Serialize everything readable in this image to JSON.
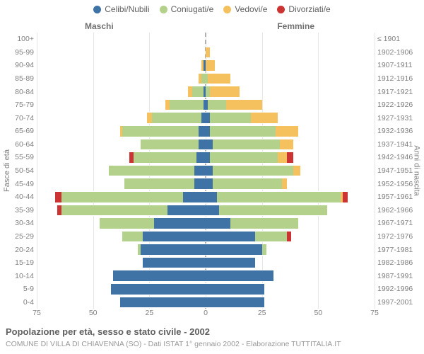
{
  "legend": [
    {
      "label": "Celibi/Nubili",
      "color": "#3f73a6"
    },
    {
      "label": "Coniugati/e",
      "color": "#b3d18b"
    },
    {
      "label": "Vedovi/e",
      "color": "#f4c15e"
    },
    {
      "label": "Divorziati/e",
      "color": "#cc3333"
    }
  ],
  "gender": {
    "male": "Maschi",
    "female": "Femmine"
  },
  "axis": {
    "left_title": "Fasce di età",
    "right_title": "Anni di nascita",
    "xmax": 75,
    "xticks": [
      75,
      50,
      25,
      0,
      25,
      50,
      75
    ]
  },
  "colors": {
    "grid": "#e6e6e6",
    "center": "#b0b0b0",
    "text": "#808080",
    "bg": "#ffffff"
  },
  "rows": [
    {
      "age": "100+",
      "birth": "≤ 1901",
      "m": [
        0,
        0,
        0,
        0
      ],
      "f": [
        0,
        0,
        0,
        0
      ]
    },
    {
      "age": "95-99",
      "birth": "1902-1906",
      "m": [
        0,
        0,
        0,
        0
      ],
      "f": [
        0,
        0,
        2,
        0
      ]
    },
    {
      "age": "90-94",
      "birth": "1907-1911",
      "m": [
        1,
        0,
        1,
        0
      ],
      "f": [
        0,
        0,
        4,
        0
      ]
    },
    {
      "age": "85-89",
      "birth": "1912-1916",
      "m": [
        0,
        2,
        1,
        0
      ],
      "f": [
        0,
        1,
        10,
        0
      ]
    },
    {
      "age": "80-84",
      "birth": "1917-1921",
      "m": [
        1,
        5,
        2,
        0
      ],
      "f": [
        0,
        2,
        13,
        0
      ]
    },
    {
      "age": "75-79",
      "birth": "1922-1926",
      "m": [
        1,
        15,
        2,
        0
      ],
      "f": [
        1,
        8,
        16,
        0
      ]
    },
    {
      "age": "70-74",
      "birth": "1927-1931",
      "m": [
        2,
        22,
        2,
        0
      ],
      "f": [
        2,
        18,
        12,
        0
      ]
    },
    {
      "age": "65-69",
      "birth": "1932-1936",
      "m": [
        3,
        34,
        1,
        0
      ],
      "f": [
        2,
        29,
        10,
        0
      ]
    },
    {
      "age": "60-64",
      "birth": "1937-1941",
      "m": [
        3,
        26,
        0,
        0
      ],
      "f": [
        3,
        30,
        6,
        0
      ]
    },
    {
      "age": "55-59",
      "birth": "1942-1946",
      "m": [
        4,
        28,
        0,
        2
      ],
      "f": [
        2,
        30,
        4,
        3
      ]
    },
    {
      "age": "50-54",
      "birth": "1947-1951",
      "m": [
        5,
        38,
        0,
        0
      ],
      "f": [
        3,
        36,
        3,
        0
      ]
    },
    {
      "age": "45-49",
      "birth": "1952-1956",
      "m": [
        5,
        31,
        0,
        0
      ],
      "f": [
        3,
        31,
        2,
        0
      ]
    },
    {
      "age": "40-44",
      "birth": "1957-1961",
      "m": [
        10,
        54,
        0,
        3
      ],
      "f": [
        5,
        55,
        1,
        2
      ]
    },
    {
      "age": "35-39",
      "birth": "1962-1966",
      "m": [
        17,
        47,
        0,
        2
      ],
      "f": [
        6,
        48,
        0,
        0
      ]
    },
    {
      "age": "30-34",
      "birth": "1967-1971",
      "m": [
        23,
        24,
        0,
        0
      ],
      "f": [
        11,
        30,
        0,
        0
      ]
    },
    {
      "age": "25-29",
      "birth": "1972-1976",
      "m": [
        28,
        9,
        0,
        0
      ],
      "f": [
        22,
        14,
        0,
        2
      ]
    },
    {
      "age": "20-24",
      "birth": "1977-1981",
      "m": [
        29,
        1,
        0,
        0
      ],
      "f": [
        25,
        2,
        0,
        0
      ]
    },
    {
      "age": "15-19",
      "birth": "1982-1986",
      "m": [
        28,
        0,
        0,
        0
      ],
      "f": [
        22,
        0,
        0,
        0
      ]
    },
    {
      "age": "10-14",
      "birth": "1987-1991",
      "m": [
        41,
        0,
        0,
        0
      ],
      "f": [
        30,
        0,
        0,
        0
      ]
    },
    {
      "age": "5-9",
      "birth": "1992-1996",
      "m": [
        42,
        0,
        0,
        0
      ],
      "f": [
        26,
        0,
        0,
        0
      ]
    },
    {
      "age": "0-4",
      "birth": "1997-2001",
      "m": [
        38,
        0,
        0,
        0
      ],
      "f": [
        26,
        0,
        0,
        0
      ]
    }
  ],
  "title": "Popolazione per età, sesso e stato civile - 2002",
  "subtitle": "COMUNE DI VILLA DI CHIAVENNA (SO) - Dati ISTAT 1° gennaio 2002 - Elaborazione TUTTITALIA.IT"
}
